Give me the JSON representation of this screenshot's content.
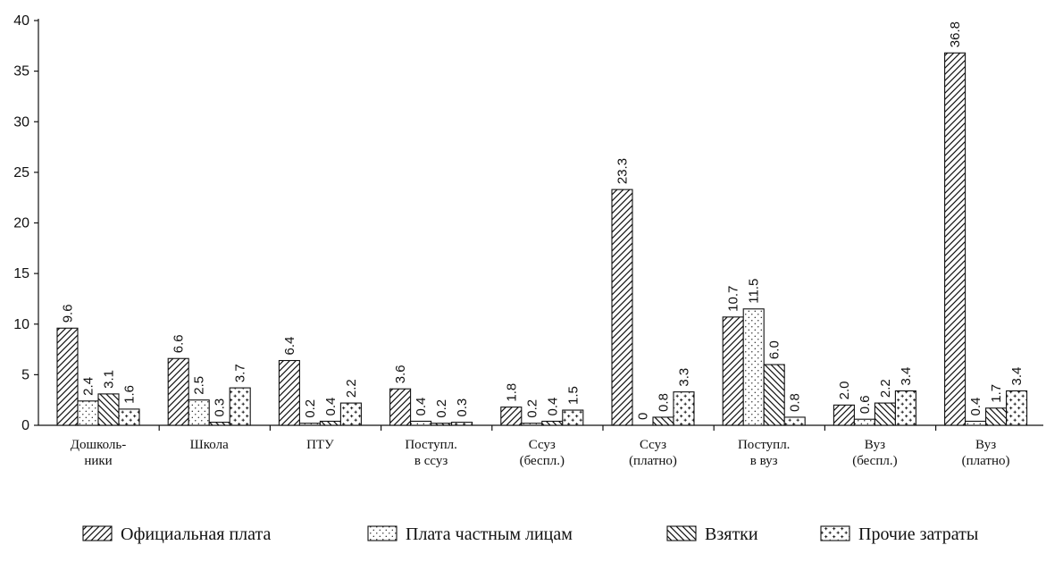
{
  "chart_data": {
    "type": "bar",
    "title": "",
    "xlabel": "",
    "ylabel": "",
    "ylim": [
      0,
      40
    ],
    "yticks": [
      0,
      5,
      10,
      15,
      20,
      25,
      30,
      35,
      40
    ],
    "grid": false,
    "legend_position": "bottom",
    "categories": [
      [
        "Дошколь-",
        "ники"
      ],
      [
        "Школа"
      ],
      [
        "ПТУ"
      ],
      [
        "Поступл.",
        "в ссуз"
      ],
      [
        "Ссуз",
        "(беспл.)"
      ],
      [
        "Ссуз",
        "(платно)"
      ],
      [
        "Поступл.",
        "в вуз"
      ],
      [
        "Вуз",
        "(беспл.)"
      ],
      [
        "Вуз",
        "(платно)"
      ]
    ],
    "series": [
      {
        "name": "Официальная плата",
        "pattern": "diagonal-forward",
        "values": [
          9.6,
          6.6,
          6.4,
          3.6,
          1.8,
          23.3,
          10.7,
          2.0,
          36.8
        ],
        "labels": [
          "9.6",
          "6.6",
          "6.4",
          "3.6",
          "1.8",
          "23.3",
          "10.7",
          "2.0",
          "36.8"
        ]
      },
      {
        "name": "Плата частным лицам",
        "pattern": "dots",
        "values": [
          2.4,
          2.5,
          0.2,
          0.4,
          0.2,
          0,
          11.5,
          0.6,
          0.4
        ],
        "labels": [
          "2.4",
          "2.5",
          "0.2",
          "0.4",
          "0.2",
          "0",
          "11.5",
          "0.6",
          "0.4"
        ]
      },
      {
        "name": "Взятки",
        "pattern": "diagonal-backward",
        "values": [
          3.1,
          0.3,
          0.4,
          0.2,
          0.4,
          0.8,
          6.0,
          2.2,
          1.7
        ],
        "labels": [
          "3.1",
          "0.3",
          "0.4",
          "0.2",
          "0.4",
          "0.8",
          "6.0",
          "2.2",
          "1.7"
        ]
      },
      {
        "name": "Прочие затраты",
        "pattern": "crosses",
        "values": [
          1.6,
          3.7,
          2.2,
          0.3,
          1.5,
          3.3,
          0.8,
          3.4,
          3.4
        ],
        "labels": [
          "1.6",
          "3.7",
          "2.2",
          "0.3",
          "1.5",
          "3.3",
          "0.8",
          "3.4",
          "3.4"
        ]
      }
    ]
  }
}
